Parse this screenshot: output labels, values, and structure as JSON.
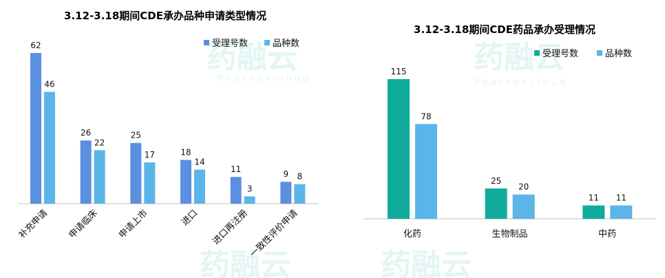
{
  "watermark": {
    "brand": "药融云",
    "sub": "Pharnexcloud"
  },
  "colors": {
    "accepted_left": "#5b8fe0",
    "accepted_right": "#10ab9a",
    "varieties": "#5bb5e8",
    "axis": "#bfbfbf"
  },
  "chart_data": [
    {
      "type": "bar",
      "title": "3.12-3.18期间CDE承办品种申请类型情况",
      "categories": [
        "补充申请",
        "申请临床",
        "申请上市",
        "进口",
        "进口再注册",
        "一致性评价申请"
      ],
      "series": [
        {
          "name": "受理号数",
          "values": [
            62,
            26,
            25,
            18,
            11,
            9
          ]
        },
        {
          "name": "品种数",
          "values": [
            46,
            22,
            17,
            14,
            3,
            8
          ]
        }
      ],
      "legend": "top-right",
      "grid": false,
      "xlabel": "",
      "ylabel": ""
    },
    {
      "type": "bar",
      "title": "3.12-3.18期间CDE药品承办受理情况",
      "categories": [
        "化药",
        "生物制品",
        "中药"
      ],
      "series": [
        {
          "name": "受理号数",
          "values": [
            115,
            25,
            11
          ]
        },
        {
          "name": "品种数",
          "values": [
            78,
            20,
            11
          ]
        }
      ],
      "legend": "top-right",
      "grid": false,
      "xlabel": "",
      "ylabel": ""
    }
  ]
}
